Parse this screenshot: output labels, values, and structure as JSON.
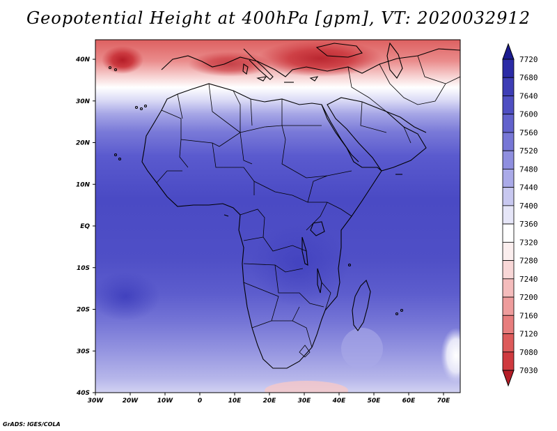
{
  "title": "Geopotential Height at 400hPa [gpm], VT: 2020032912",
  "credit": "GrADS: IGES/COLA",
  "map": {
    "lat_labels": [
      "40N",
      "30N",
      "20N",
      "10N",
      "EQ",
      "10S",
      "20S",
      "30S",
      "40S"
    ],
    "lon_labels": [
      "30W",
      "20W",
      "10W",
      "0",
      "10E",
      "20E",
      "30E",
      "40E",
      "50E",
      "60E",
      "70E"
    ],
    "lon_range": [
      -30,
      75
    ],
    "lat_range": [
      -40,
      45
    ]
  },
  "colorbar": {
    "levels": [
      "7030",
      "7080",
      "7120",
      "7160",
      "7200",
      "7240",
      "7280",
      "7320",
      "7360",
      "7400",
      "7440",
      "7480",
      "7520",
      "7560",
      "7600",
      "7640",
      "7680",
      "7720"
    ],
    "colors": [
      "#b51d27",
      "#cf3a3f",
      "#dd5b5b",
      "#e77d7d",
      "#ee9c9c",
      "#f4bcbc",
      "#f8d7d7",
      "#fbeeee",
      "#ffffff",
      "#e6e6f8",
      "#c8c8f0",
      "#aaaae8",
      "#8f8fdf",
      "#7777d6",
      "#6262cc",
      "#4f4fc2",
      "#3d3db5",
      "#2b2ba6",
      "#1c1c90"
    ]
  }
}
